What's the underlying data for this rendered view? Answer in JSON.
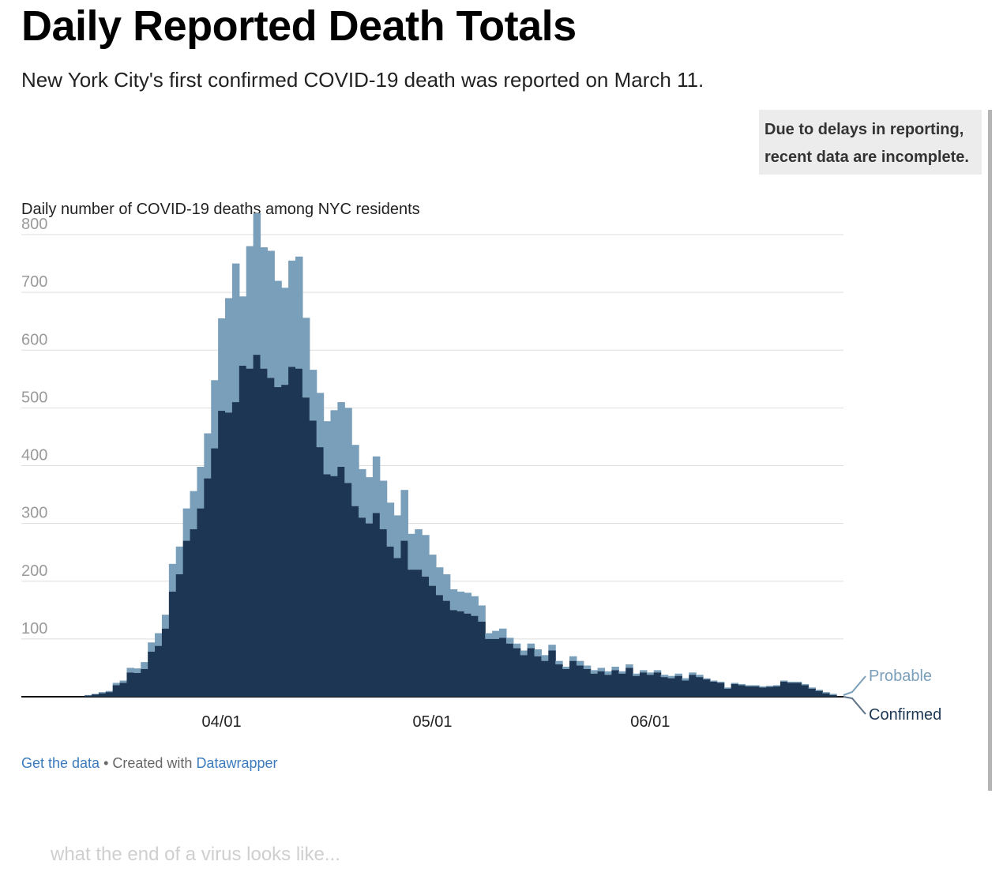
{
  "header": {
    "title": "Daily Reported Death Totals",
    "subtitle": "New York City's first confirmed COVID-19 death was reported on March 11."
  },
  "note": {
    "line1": "Due to delays in reporting,",
    "line2": "recent data are incomplete."
  },
  "footer": {
    "get_data": "Get the data",
    "separator": " • Created with ",
    "datawrapper": "Datawrapper"
  },
  "caption": "what the end of a virus looks like...",
  "colors": {
    "probable": "#7a9fba",
    "confirmed": "#1d3654",
    "grid": "#dddddd"
  },
  "chart_data": {
    "type": "bar",
    "stacked": true,
    "title": "Daily number of COVID-19 deaths among NYC residents",
    "ylim": [
      0,
      800
    ],
    "yticks": [
      100,
      200,
      300,
      400,
      500,
      600,
      700,
      800
    ],
    "grid": true,
    "x_start_date": "03/04",
    "xticks": [
      {
        "label": "04/01",
        "index": 28
      },
      {
        "label": "05/01",
        "index": 58
      },
      {
        "label": "06/01",
        "index": 89
      }
    ],
    "series": [
      {
        "name": "Confirmed",
        "values": [
          0,
          0,
          0,
          0,
          0,
          0,
          0,
          0,
          0,
          2,
          4,
          6,
          8,
          20,
          24,
          42,
          41,
          48,
          78,
          88,
          118,
          182,
          212,
          270,
          290,
          326,
          378,
          430,
          495,
          492,
          510,
          573,
          568,
          592,
          568,
          552,
          536,
          540,
          571,
          568,
          518,
          478,
          432,
          385,
          382,
          398,
          370,
          330,
          310,
          300,
          318,
          290,
          260,
          240,
          270,
          220,
          220,
          208,
          192,
          176,
          166,
          150,
          148,
          144,
          140,
          130,
          100,
          100,
          102,
          92,
          84,
          72,
          84,
          70,
          62,
          80,
          56,
          48,
          62,
          54,
          48,
          40,
          44,
          38,
          46,
          40,
          50,
          36,
          42,
          38,
          42,
          34,
          32,
          36,
          28,
          38,
          34,
          30,
          26,
          24,
          14,
          22,
          20,
          18,
          18,
          16,
          17,
          18,
          26,
          24,
          24,
          20,
          14,
          10,
          6,
          3,
          0
        ]
      },
      {
        "name": "Probable",
        "values": [
          0,
          0,
          0,
          0,
          0,
          0,
          0,
          0,
          0,
          1,
          1,
          2,
          2,
          4,
          4,
          8,
          8,
          12,
          16,
          22,
          24,
          48,
          48,
          56,
          66,
          72,
          78,
          118,
          160,
          198,
          240,
          120,
          212,
          258,
          210,
          220,
          184,
          168,
          184,
          194,
          138,
          88,
          94,
          92,
          114,
          112,
          130,
          106,
          84,
          80,
          98,
          84,
          76,
          74,
          88,
          62,
          70,
          72,
          54,
          48,
          46,
          36,
          34,
          36,
          34,
          28,
          10,
          14,
          16,
          10,
          8,
          8,
          8,
          12,
          10,
          10,
          6,
          4,
          8,
          8,
          6,
          6,
          6,
          6,
          6,
          4,
          6,
          4,
          4,
          4,
          4,
          4,
          4,
          4,
          4,
          4,
          4,
          2,
          2,
          2,
          2,
          2,
          2,
          2,
          2,
          2,
          2,
          2,
          2,
          2,
          2,
          2,
          2,
          2,
          2,
          2,
          0
        ]
      }
    ],
    "legend": [
      "Probable",
      "Confirmed"
    ]
  }
}
